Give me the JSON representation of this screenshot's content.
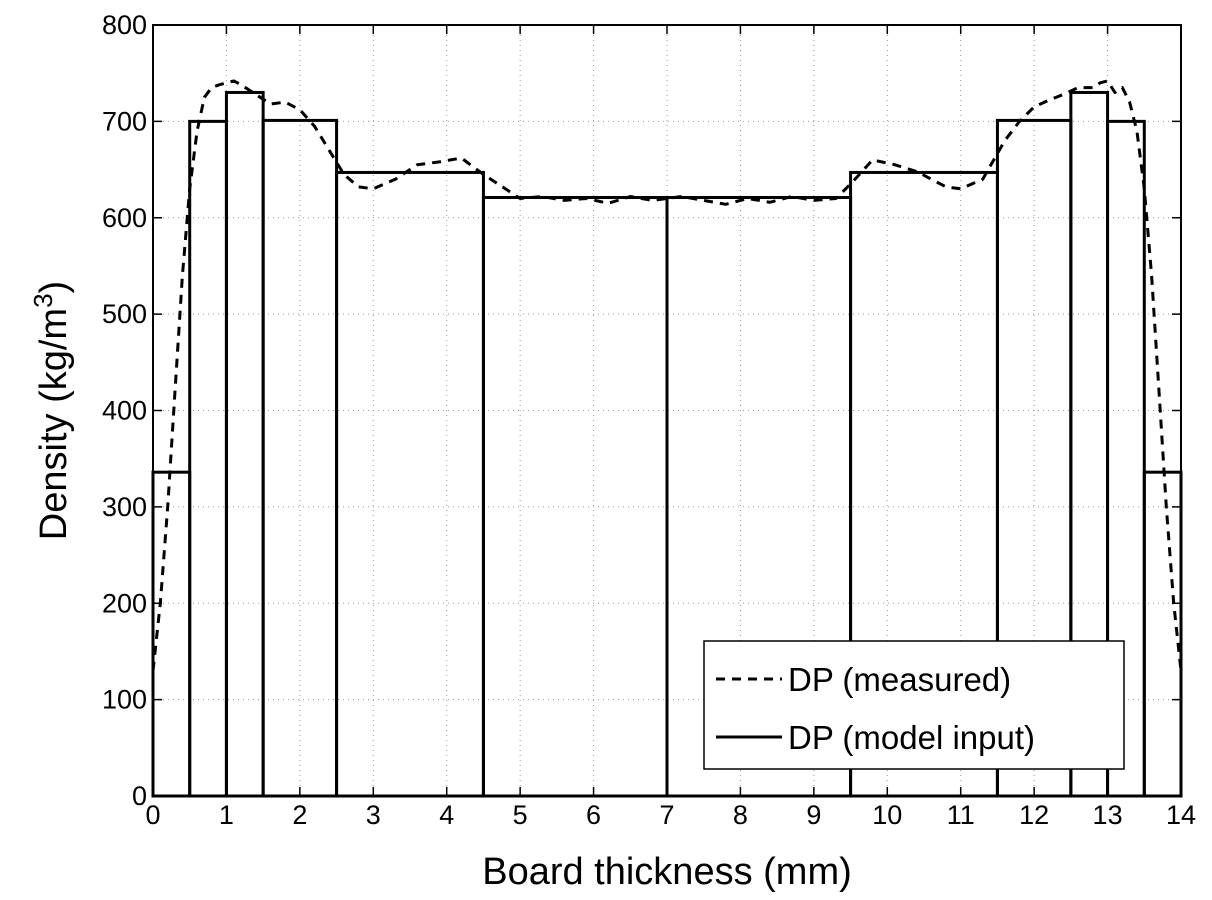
{
  "chart_data": {
    "type": "line",
    "title": "",
    "xlabel": "Board thickness (mm)",
    "ylabel_main": "Density (kg/m",
    "ylabel_sup": "3",
    "ylabel_close": ")",
    "xlim": [
      0,
      14
    ],
    "ylim": [
      0,
      800
    ],
    "xticks": [
      "0",
      "1",
      "2",
      "3",
      "4",
      "5",
      "6",
      "7",
      "8",
      "9",
      "10",
      "11",
      "12",
      "13",
      "14"
    ],
    "yticks": [
      "0",
      "100",
      "200",
      "300",
      "400",
      "500",
      "600",
      "700",
      "800"
    ],
    "grid": true,
    "legend_position": "bottom-right",
    "legend": [
      "DP (measured)",
      "DP (model input)"
    ],
    "series": [
      {
        "name": "DP (measured)",
        "style": "dashed",
        "x": [
          0,
          0.1,
          0.2,
          0.3,
          0.4,
          0.5,
          0.6,
          0.7,
          0.8,
          0.9,
          1.0,
          1.1,
          1.2,
          1.4,
          1.6,
          1.8,
          2.0,
          2.2,
          2.4,
          2.6,
          2.8,
          3.0,
          3.3,
          3.6,
          3.9,
          4.2,
          4.5,
          4.7,
          5.0,
          5.3,
          5.6,
          5.9,
          6.2,
          6.5,
          6.8,
          7.0,
          7.2,
          7.5,
          7.8,
          8.1,
          8.4,
          8.7,
          9.0,
          9.3,
          9.5,
          9.8,
          10.1,
          10.4,
          10.8,
          11.0,
          11.3,
          11.6,
          11.8,
          12.0,
          12.2,
          12.4,
          12.6,
          12.8,
          12.9,
          13.0,
          13.1,
          13.2,
          13.3,
          13.4,
          13.5,
          13.6,
          13.7,
          13.8,
          13.9,
          14.0
        ],
        "y": [
          130,
          200,
          300,
          420,
          540,
          630,
          690,
          725,
          735,
          738,
          740,
          742,
          738,
          728,
          718,
          720,
          712,
          695,
          670,
          645,
          632,
          630,
          640,
          655,
          658,
          662,
          645,
          635,
          620,
          622,
          618,
          620,
          615,
          622,
          618,
          620,
          622,
          618,
          614,
          620,
          616,
          622,
          618,
          620,
          635,
          660,
          655,
          648,
          632,
          630,
          640,
          680,
          700,
          715,
          722,
          728,
          735,
          735,
          740,
          742,
          730,
          735,
          720,
          690,
          630,
          540,
          420,
          300,
          200,
          130
        ]
      },
      {
        "name": "DP (model input)",
        "style": "solid",
        "bars": [
          {
            "x0": 0,
            "x1": 0.5,
            "y": 336
          },
          {
            "x0": 0.5,
            "x1": 1,
            "y": 700
          },
          {
            "x0": 1,
            "x1": 1.5,
            "y": 730
          },
          {
            "x0": 1.5,
            "x1": 2.5,
            "y": 701
          },
          {
            "x0": 2.5,
            "x1": 4.5,
            "y": 647
          },
          {
            "x0": 4.5,
            "x1": 7,
            "y": 621
          },
          {
            "x0": 7,
            "x1": 9.5,
            "y": 621
          },
          {
            "x0": 9.5,
            "x1": 11.5,
            "y": 647
          },
          {
            "x0": 11.5,
            "x1": 12.5,
            "y": 701
          },
          {
            "x0": 12.5,
            "x1": 13,
            "y": 730
          },
          {
            "x0": 13,
            "x1": 13.5,
            "y": 700
          },
          {
            "x0": 13.5,
            "x1": 14,
            "y": 336
          }
        ]
      }
    ]
  }
}
